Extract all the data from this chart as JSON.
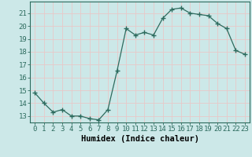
{
  "x": [
    0,
    1,
    2,
    3,
    4,
    5,
    6,
    7,
    8,
    9,
    10,
    11,
    12,
    13,
    14,
    15,
    16,
    17,
    18,
    19,
    20,
    21,
    22,
    23
  ],
  "y": [
    14.8,
    14.0,
    13.3,
    13.5,
    13.0,
    13.0,
    12.8,
    12.7,
    13.5,
    16.5,
    19.8,
    19.3,
    19.5,
    19.3,
    20.6,
    21.3,
    21.4,
    21.0,
    20.9,
    20.8,
    20.2,
    19.8,
    18.1,
    17.8
  ],
  "line_color": "#2d6b5e",
  "marker": "+",
  "marker_size": 4,
  "bg_color": "#cce8e8",
  "grid_color": "#e8c8c8",
  "xlabel": "Humidex (Indice chaleur)",
  "xlim": [
    -0.5,
    23.5
  ],
  "ylim": [
    12.5,
    21.9
  ],
  "yticks": [
    13,
    14,
    15,
    16,
    17,
    18,
    19,
    20,
    21
  ],
  "xtick_labels": [
    "0",
    "1",
    "2",
    "3",
    "4",
    "5",
    "6",
    "7",
    "8",
    "9",
    "10",
    "11",
    "12",
    "13",
    "14",
    "15",
    "16",
    "17",
    "18",
    "19",
    "20",
    "21",
    "22",
    "23"
  ],
  "tick_fontsize": 6.5,
  "xlabel_fontsize": 7.5
}
